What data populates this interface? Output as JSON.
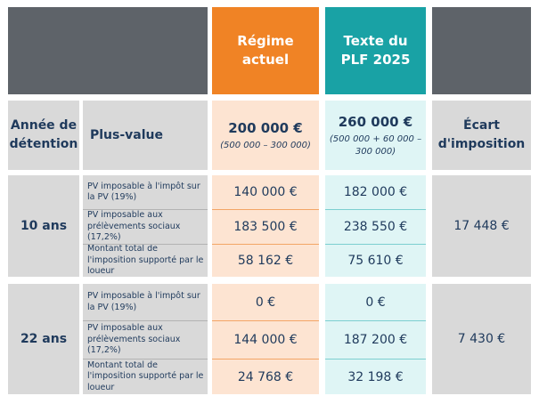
{
  "header": {
    "regime_actuel": "Régime actuel",
    "texte_plf": "Texte du PLF 2025"
  },
  "subheader": {
    "annee_detention": "Année de détention",
    "plus_value": "Plus-value",
    "regime_actuel_amount": "200 000 €",
    "regime_actuel_formula": "(500 000 – 300 000)",
    "plf_amount": "260 000 €",
    "plf_formula": "(500 000 + 60 000 – 300 000)",
    "ecart_imposition": "Écart d'imposition"
  },
  "rows": [
    {
      "annee": "10 ans",
      "lines": [
        {
          "label": "PV imposable à l'impôt sur la PV (19%)",
          "actuel": "140 000 €",
          "plf": "182 000 €"
        },
        {
          "label": "PV imposable aux prélèvements sociaux (17,2%)",
          "actuel": "183 500 €",
          "plf": "238 550 €"
        },
        {
          "label": "Montant total de l'imposition supporté par le loueur",
          "actuel": "58 162 €",
          "plf": "75 610 €"
        }
      ],
      "ecart": "17 448 €"
    },
    {
      "annee": "22 ans",
      "lines": [
        {
          "label": "PV imposable à l'impôt sur la PV (19%)",
          "actuel": "0 €",
          "plf": "0 €"
        },
        {
          "label": "PV imposable aux prélèvements sociaux (17,2%)",
          "actuel": "144 000 €",
          "plf": "187 200 €"
        },
        {
          "label": "Montant total de l'imposition supporté par le loueur",
          "actuel": "24 768 €",
          "plf": "32 198 €"
        }
      ],
      "ecart": "7 430 €"
    }
  ]
}
